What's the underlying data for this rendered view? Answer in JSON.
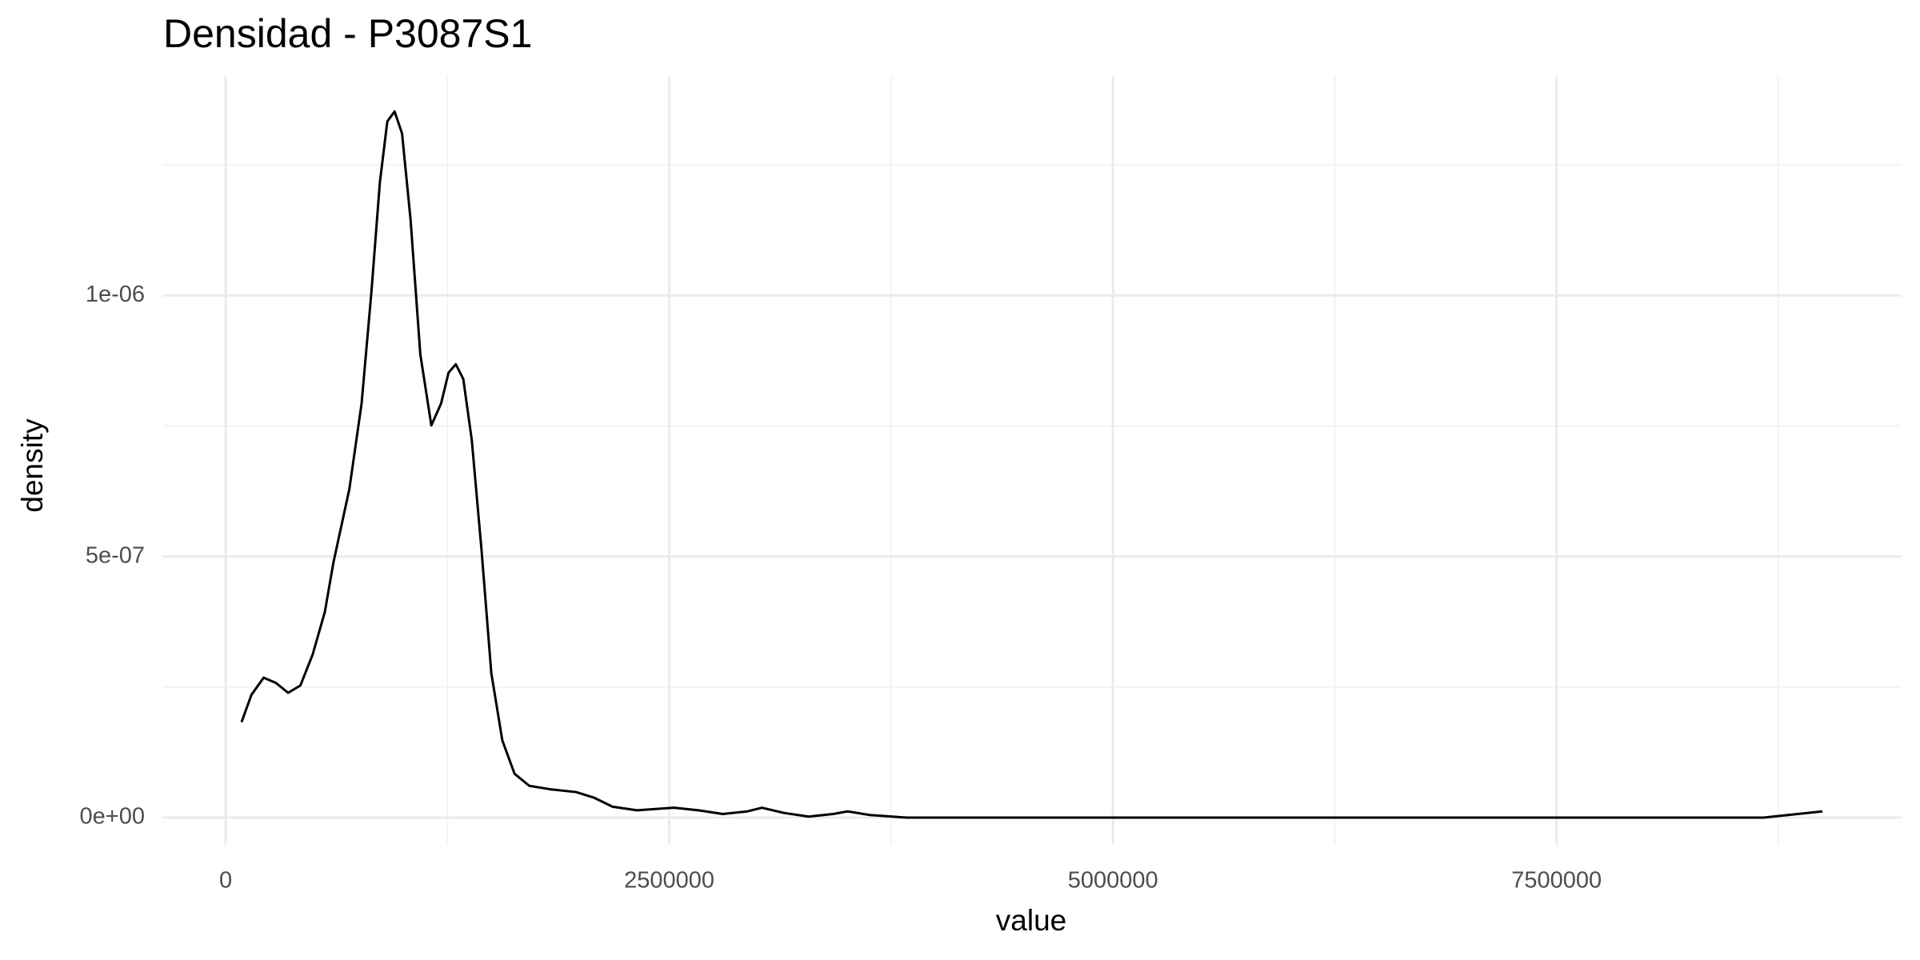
{
  "chart_data": {
    "type": "line",
    "title": "Densidad - P3087S1",
    "xlabel": "value",
    "ylabel": "density",
    "x": [
      89700,
      145000,
      214000,
      283000,
      352000,
      421000,
      490000,
      559000,
      607000,
      697000,
      766000,
      821000,
      869000,
      911000,
      952000,
      994000,
      1042000,
      1097000,
      1159000,
      1214000,
      1256000,
      1297000,
      1339000,
      1387000,
      1442000,
      1497000,
      1559000,
      1628000,
      1711000,
      1835000,
      1974000,
      2077000,
      2180000,
      2318000,
      2526000,
      2664000,
      2802000,
      2940000,
      3022000,
      3147000,
      3285000,
      3423000,
      3505000,
      3630000,
      3837000,
      8667000,
      8805000,
      8998000
    ],
    "values": [
      1.83e-07,
      2.35e-07,
      2.68e-07,
      2.58e-07,
      2.39e-07,
      2.53e-07,
      3.12e-07,
      3.94e-07,
      4.88e-07,
      6.29e-07,
      7.93e-07,
      1.005e-06,
      1.216e-06,
      1.333e-06,
      1.352e-06,
      1.31e-06,
      1.145e-06,
      8.87e-07,
      7.51e-07,
      7.93e-07,
      8.52e-07,
      8.68e-07,
      8.4e-07,
      7.23e-07,
      5.12e-07,
      2.77e-07,
      1.48e-07,
      8.4e-08,
      6.1e-08,
      5.4e-08,
      4.9e-08,
      3.8e-08,
      2.1e-08,
      1.4e-08,
      1.9e-08,
      1.4e-08,
      7e-09,
      1.2e-08,
      1.9e-08,
      9e-09,
      2e-09,
      7e-09,
      1.2e-08,
      5e-09,
      0,
      0,
      5e-09,
      1.2e-08
    ],
    "color": "#000000",
    "xlim": [
      -352000,
      9440000
    ],
    "xticks": [
      0,
      2500000,
      5000000,
      7500000
    ],
    "ylim": [
      -5.2e-08,
      1.42e-06
    ],
    "yticks": [
      {
        "value": 0,
        "label": "0e+00"
      },
      {
        "value": 5e-07,
        "label": "5e-07"
      },
      {
        "value": 1e-06,
        "label": "1e-06"
      }
    ],
    "minor_xticks": [
      1250000,
      3750000,
      6250000,
      8750000
    ],
    "minor_yticks": [
      2.5e-07,
      7.5e-07,
      1.25e-06
    ],
    "grid": true
  }
}
